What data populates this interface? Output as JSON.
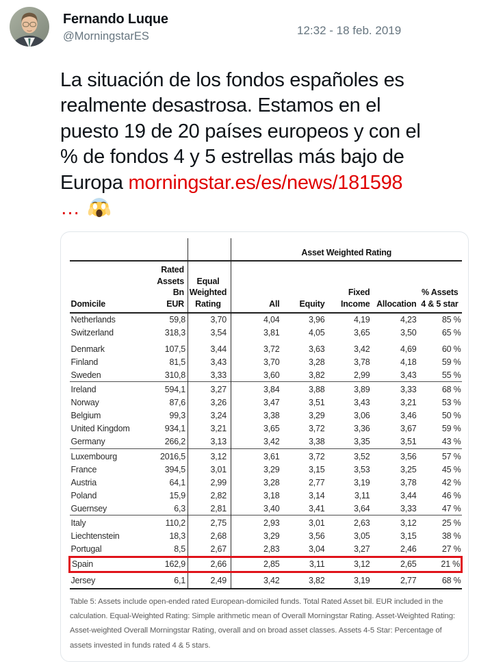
{
  "user": {
    "name": "Fernando Luque",
    "handle": "@MorningstarES"
  },
  "tweet": {
    "timestamp": "12:32 - 18 feb. 2019",
    "link_text": "morningstar.es/es/news/181598 …",
    "emoji": "scream-emoji",
    "lines": [
      {
        "segments": [
          {
            "type": "text",
            "value": "La situación de los fondos españoles es"
          }
        ]
      },
      {
        "segments": [
          {
            "type": "text",
            "value": "realmente desastrosa. Estamos en el"
          }
        ]
      },
      {
        "segments": [
          {
            "type": "text",
            "value": "puesto 19 de 20 países europeos y con el"
          }
        ]
      },
      {
        "segments": [
          {
            "type": "text",
            "value": "% de fondos 4 y 5 estrellas más bajo de"
          }
        ]
      },
      {
        "segments": [
          {
            "type": "text",
            "value": "Europa "
          },
          {
            "type": "link",
            "value": "morningstar.es/es/news/181598"
          }
        ]
      },
      {
        "segments": [
          {
            "type": "link",
            "value": "…"
          },
          {
            "type": "emoji",
            "value": "scream-emoji"
          }
        ]
      }
    ]
  },
  "colors": {
    "link_red": "#e00000",
    "highlight_box_red": "#e0131a",
    "handle_gray": "#66757f"
  },
  "table": {
    "span_header": "Asset Weighted Rating",
    "columns": [
      "Domicile",
      "Rated\nAssets Bn\nEUR",
      "Equal\nWeighted\nRating",
      "All",
      "Equity",
      "Fixed\nIncome",
      "Allocation",
      "% Assets\n4 & 5 star"
    ],
    "rows": [
      {
        "cells": [
          "Netherlands",
          "59,8",
          "3,70",
          "4,04",
          "3,96",
          "4,19",
          "4,23",
          "85 %"
        ]
      },
      {
        "cells": [
          "Switzerland",
          "318,3",
          "3,54",
          "3,81",
          "4,05",
          "3,65",
          "3,50",
          "65 %"
        ]
      },
      {
        "cells": [
          "Denmark",
          "107,5",
          "3,44",
          "3,72",
          "3,63",
          "3,42",
          "4,69",
          "60 %"
        ],
        "subgap": true
      },
      {
        "cells": [
          "Finland",
          "81,5",
          "3,43",
          "3,70",
          "3,28",
          "3,78",
          "4,18",
          "59 %"
        ]
      },
      {
        "cells": [
          "Sweden",
          "310,8",
          "3,33",
          "3,60",
          "3,82",
          "2,99",
          "3,43",
          "55 %"
        ]
      },
      {
        "cells": [
          "Ireland",
          "594,1",
          "3,27",
          "3,84",
          "3,88",
          "3,89",
          "3,33",
          "68 %"
        ],
        "group_start": true
      },
      {
        "cells": [
          "Norway",
          "87,6",
          "3,26",
          "3,47",
          "3,51",
          "3,43",
          "3,21",
          "53 %"
        ]
      },
      {
        "cells": [
          "Belgium",
          "99,3",
          "3,24",
          "3,38",
          "3,29",
          "3,06",
          "3,46",
          "50 %"
        ]
      },
      {
        "cells": [
          "United Kingdom",
          "934,1",
          "3,21",
          "3,65",
          "3,72",
          "3,36",
          "3,67",
          "59 %"
        ]
      },
      {
        "cells": [
          "Germany",
          "266,2",
          "3,13",
          "3,42",
          "3,38",
          "3,35",
          "3,51",
          "43 %"
        ]
      },
      {
        "cells": [
          "Luxembourg",
          "2016,5",
          "3,12",
          "3,61",
          "3,72",
          "3,52",
          "3,56",
          "57 %"
        ],
        "group_start": true
      },
      {
        "cells": [
          "France",
          "394,5",
          "3,01",
          "3,29",
          "3,15",
          "3,53",
          "3,25",
          "45 %"
        ]
      },
      {
        "cells": [
          "Austria",
          "64,1",
          "2,99",
          "3,28",
          "2,77",
          "3,19",
          "3,78",
          "42 %"
        ]
      },
      {
        "cells": [
          "Poland",
          "15,9",
          "2,82",
          "3,18",
          "3,14",
          "3,11",
          "3,44",
          "46 %"
        ]
      },
      {
        "cells": [
          "Guernsey",
          "6,3",
          "2,81",
          "3,40",
          "3,41",
          "3,64",
          "3,33",
          "47 %"
        ]
      },
      {
        "cells": [
          "Italy",
          "110,2",
          "2,75",
          "2,93",
          "3,01",
          "2,63",
          "3,12",
          "25 %"
        ],
        "group_start": true
      },
      {
        "cells": [
          "Liechtenstein",
          "18,3",
          "2,68",
          "3,29",
          "3,56",
          "3,05",
          "3,15",
          "38 %"
        ]
      },
      {
        "cells": [
          "Portugal",
          "8,5",
          "2,67",
          "2,83",
          "3,04",
          "3,27",
          "2,46",
          "27 %"
        ]
      },
      {
        "cells": [
          "Spain",
          "162,9",
          "2,66",
          "2,85",
          "3,11",
          "3,12",
          "2,65",
          "21 %"
        ],
        "highlight": true
      },
      {
        "cells": [
          "Jersey",
          "6,1",
          "2,49",
          "3,42",
          "3,82",
          "3,19",
          "2,77",
          "68 %"
        ],
        "group_start": true,
        "last": true
      }
    ],
    "footnote": "Table 5: Assets include open-ended rated European-domiciled funds. Total Rated Asset bil. EUR included in the calculation. Equal-Weighted Rating: Simple arithmetic mean of Overall Morningstar Rating. Asset-Weighted Rating: Asset-weighted Overall Morningstar Rating, overall and on broad asset classes. Assets 4-5 Star: Percentage of assets invested in funds rated 4 & 5 stars."
  }
}
